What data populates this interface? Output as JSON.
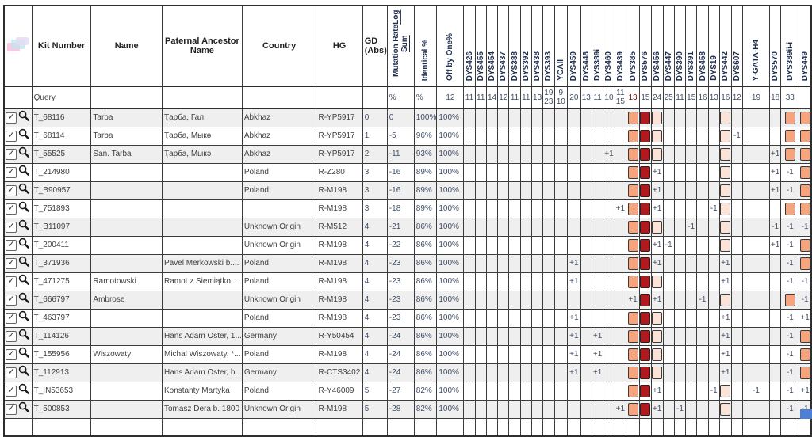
{
  "colors": {
    "salmon": "#F5A47E",
    "dark_red": "#AE1A1E",
    "light_pink": "#FBE3D7",
    "row_stripe": "#EFEFEF",
    "grid_line": "#3C3C3C",
    "corner_blue": "#4D7FD6"
  },
  "table": {
    "header": {
      "kit": "Kit Number",
      "name": "Name",
      "ancestor": "Paternal Ancestor Name",
      "country": "Country",
      "hg": "HG",
      "gd": "GD (Abs)",
      "mut1": "Mutation Rate",
      "mut2": "Log Sum",
      "identical": "Identical %",
      "offbyone": "Off by One%"
    },
    "markers": [
      {
        "name": "DYS426",
        "q": "12"
      },
      {
        "name": "DYS455",
        "q": "11"
      },
      {
        "name": "DYS454",
        "q": "11"
      },
      {
        "name": "DYS437",
        "q": "14"
      },
      {
        "name": "DYS388",
        "q": "12"
      },
      {
        "name": "DYS392",
        "q": "11"
      },
      {
        "name": "DYS438",
        "q": "11"
      },
      {
        "name": "DYS393",
        "q": "13"
      },
      {
        "name": "YCAII",
        "q": "19\n23",
        "wide": true
      },
      {
        "name": "DYS459",
        "q": "9\n10",
        "wide": true
      },
      {
        "name": "DYS448",
        "q": "20"
      },
      {
        "name": "DYS389i",
        "q": "13"
      },
      {
        "name": "DYS460",
        "q": "11"
      },
      {
        "name": "DYS439",
        "q": "10"
      },
      {
        "name": "DYS385",
        "q": "11\n15",
        "wide": true,
        "hl": "s"
      },
      {
        "name": "DYS576",
        "q": "13",
        "hl": "d"
      },
      {
        "name": "DYS456",
        "q": "15",
        "hl": "l"
      },
      {
        "name": "DYS447",
        "q": "24"
      },
      {
        "name": "DYS390",
        "q": "25"
      },
      {
        "name": "DYS391",
        "q": "11"
      },
      {
        "name": "DYS458",
        "q": "15"
      },
      {
        "name": "DYS19",
        "q": "16"
      },
      {
        "name": "DYS442",
        "q": "13",
        "hl": "l"
      },
      {
        "name": "DYS607",
        "q": "16"
      },
      {
        "name": "Y-GATA-H4",
        "q": "12"
      },
      {
        "name": "DYS570",
        "q": "19"
      },
      {
        "name": "DYS389ii-i",
        "q": "18",
        "hl": "s"
      },
      {
        "name": "DYS449",
        "q": "33",
        "hl": "s"
      }
    ],
    "query": {
      "label": "Query",
      "identical_symbol": "%",
      "offbyone_symbol": "%"
    },
    "rows": [
      {
        "kit": "T_68116",
        "name": "Tarba",
        "ancestor": "Ҭарба, Гал",
        "country": "Abkhaz",
        "hg": "R-YP5917",
        "gd": "0",
        "mutlog": "0",
        "identical": "100%",
        "offbyone": "100%",
        "cells": {
          "DYS385": "s",
          "DYS576": "d",
          "DYS456": "l",
          "DYS442": "l",
          "DYS389ii-i": "s",
          "DYS449": "s"
        }
      },
      {
        "kit": "T_68114",
        "name": "Tarba",
        "ancestor": "Ҭарба, Мыкә",
        "country": "Abkhaz",
        "hg": "R-YP5917",
        "gd": "1",
        "mutlog": "-5",
        "identical": "96%",
        "offbyone": "100%",
        "cells": {
          "DYS385": "s",
          "DYS576": "d",
          "DYS456": "l",
          "DYS442": "l",
          "DYS607": "-1",
          "DYS389ii-i": "s",
          "DYS449": "s"
        }
      },
      {
        "kit": "T_55525",
        "name": "San. Tarba",
        "ancestor": "Ҭарба, Мыкә",
        "country": "Abkhaz",
        "hg": "R-YP5917",
        "gd": "2",
        "mutlog": "-11",
        "identical": "93%",
        "offbyone": "100%",
        "cells": {
          "DYS460": "+1",
          "DYS385": "s",
          "DYS576": "d",
          "DYS456": "l",
          "DYS442": "l",
          "DYS570": "+1",
          "DYS389ii-i": "s",
          "DYS449": "s"
        }
      },
      {
        "kit": "T_214980",
        "name": "",
        "ancestor": "",
        "country": "Poland",
        "hg": "R-Z280",
        "gd": "3",
        "mutlog": "-16",
        "identical": "89%",
        "offbyone": "100%",
        "cells": {
          "DYS385": "s",
          "DYS576": "d",
          "DYS456": "+1",
          "DYS442": "l",
          "DYS570": "+1",
          "DYS389ii-i": "-1",
          "DYS449": "s"
        }
      },
      {
        "kit": "T_B90957",
        "name": "",
        "ancestor": "",
        "country": "Poland",
        "hg": "R-M198",
        "gd": "3",
        "mutlog": "-16",
        "identical": "89%",
        "offbyone": "100%",
        "cells": {
          "DYS385": "s",
          "DYS576": "d",
          "DYS456": "+1",
          "DYS442": "l",
          "DYS570": "+1",
          "DYS389ii-i": "-1",
          "DYS449": "s"
        }
      },
      {
        "kit": "T_751893",
        "name": "",
        "ancestor": "",
        "country": "",
        "hg": "R-M198",
        "gd": "3",
        "mutlog": "-18",
        "identical": "89%",
        "offbyone": "100%",
        "cells": {
          "DYS439": "+1",
          "DYS385": "s",
          "DYS576": "d",
          "DYS456": "+1",
          "DYS19": "-1",
          "DYS442": "l",
          "DYS389ii-i": "s",
          "DYS449": "s"
        }
      },
      {
        "kit": "T_B11097",
        "name": "",
        "ancestor": "",
        "country": "Unknown Origin",
        "hg": "R-M512",
        "gd": "4",
        "mutlog": "-21",
        "identical": "86%",
        "offbyone": "100%",
        "cells": {
          "DYS385": "s",
          "DYS576": "d",
          "DYS456": "l",
          "DYS391": "-1",
          "DYS442": "l",
          "DYS570": "-1",
          "DYS389ii-i": "-1",
          "DYS449": "-1"
        }
      },
      {
        "kit": "T_200411",
        "name": "",
        "ancestor": "",
        "country": "Unknown Origin",
        "hg": "R-M198",
        "gd": "4",
        "mutlog": "-22",
        "identical": "86%",
        "offbyone": "100%",
        "cells": {
          "DYS385": "s",
          "DYS576": "d",
          "DYS456": "+1",
          "DYS447": "-1",
          "DYS442": "l",
          "DYS570": "+1",
          "DYS389ii-i": "-1",
          "DYS449": "s"
        }
      },
      {
        "kit": "T_371936",
        "name": "",
        "ancestor": "Pavel Merkowski b....",
        "country": "Poland",
        "hg": "R-M198",
        "gd": "4",
        "mutlog": "-23",
        "identical": "86%",
        "offbyone": "100%",
        "cells": {
          "DYS459": "+1",
          "DYS385": "s",
          "DYS576": "d",
          "DYS456": "+1",
          "DYS442": "+1",
          "DYS389ii-i": "-1",
          "DYS449": "s"
        }
      },
      {
        "kit": "T_471275",
        "name": "Ramotowski",
        "ancestor": "Ramot z Siemiątko...",
        "country": "Poland",
        "hg": "R-M198",
        "gd": "4",
        "mutlog": "-23",
        "identical": "86%",
        "offbyone": "100%",
        "cells": {
          "DYS459": "+1",
          "DYS385": "s",
          "DYS576": "d",
          "DYS456": "l",
          "DYS442": "+1",
          "DYS389ii-i": "-1",
          "DYS449": "-1"
        }
      },
      {
        "kit": "T_666797",
        "name": "Ambrose",
        "ancestor": "",
        "country": "Unknown Origin",
        "hg": "R-M198",
        "gd": "4",
        "mutlog": "-23",
        "identical": "86%",
        "offbyone": "100%",
        "cells": {
          "DYS385": "+1",
          "DYS576": "d",
          "DYS456": "+1",
          "DYS458": "-1",
          "DYS442": "l",
          "DYS389ii-i": "s",
          "DYS449": "-1"
        }
      },
      {
        "kit": "T_463797",
        "name": "",
        "ancestor": "",
        "country": "Poland",
        "hg": "R-M198",
        "gd": "4",
        "mutlog": "-23",
        "identical": "86%",
        "offbyone": "100%",
        "cells": {
          "DYS459": "+1",
          "DYS385": "s",
          "DYS576": "d",
          "DYS456": "l",
          "DYS442": "+1",
          "DYS389ii-i": "-1",
          "DYS449": "+1"
        }
      },
      {
        "kit": "T_114126",
        "name": "",
        "ancestor": "Hans Adam Oster, 1...",
        "country": "Germany",
        "hg": "R-Y50454",
        "gd": "4",
        "mutlog": "-24",
        "identical": "86%",
        "offbyone": "100%",
        "cells": {
          "DYS459": "+1",
          "DYS389i": "+1",
          "DYS385": "s",
          "DYS576": "d",
          "DYS456": "l",
          "DYS442": "+1",
          "DYS389ii-i": "-1",
          "DYS449": "s"
        }
      },
      {
        "kit": "T_155956",
        "name": "Wiszowaty",
        "ancestor": "Michal Wiszowaty, *...",
        "country": "Poland",
        "hg": "R-M198",
        "gd": "4",
        "mutlog": "-24",
        "identical": "86%",
        "offbyone": "100%",
        "cells": {
          "DYS459": "+1",
          "DYS389i": "+1",
          "DYS385": "s",
          "DYS576": "d",
          "DYS456": "l",
          "DYS442": "+1",
          "DYS389ii-i": "-1",
          "DYS449": "s"
        }
      },
      {
        "kit": "T_112913",
        "name": "",
        "ancestor": "Hans Adam Oster, b...",
        "country": "Germany",
        "hg": "R-CTS3402",
        "gd": "4",
        "mutlog": "-24",
        "identical": "86%",
        "offbyone": "100%",
        "cells": {
          "DYS459": "+1",
          "DYS389i": "+1",
          "DYS385": "s",
          "DYS576": "d",
          "DYS456": "l",
          "DYS442": "+1",
          "DYS389ii-i": "-1",
          "DYS449": "s"
        }
      },
      {
        "kit": "T_IN53653",
        "name": "",
        "ancestor": "Konstanty Martyka",
        "country": "Poland",
        "hg": "R-Y46009",
        "gd": "5",
        "mutlog": "-27",
        "identical": "82%",
        "offbyone": "100%",
        "cells": {
          "DYS385": "s",
          "DYS576": "d",
          "DYS456": "+1",
          "DYS19": "-1",
          "DYS442": "l",
          "Y-GATA-H4": "-1",
          "DYS389ii-i": "-1",
          "DYS449": "+1"
        }
      },
      {
        "kit": "T_500853",
        "name": "",
        "ancestor": "Tomasz Dera b. 1800",
        "country": "Unknown Origin",
        "hg": "R-M198",
        "gd": "5",
        "mutlog": "-28",
        "identical": "82%",
        "offbyone": "100%",
        "cells": {
          "DYS439": "+1",
          "DYS385": "s",
          "DYS576": "d",
          "DYS456": "+1",
          "DYS390": "-1",
          "DYS442": "l",
          "DYS389ii-i": "-1",
          "DYS449": "-1"
        }
      }
    ]
  }
}
